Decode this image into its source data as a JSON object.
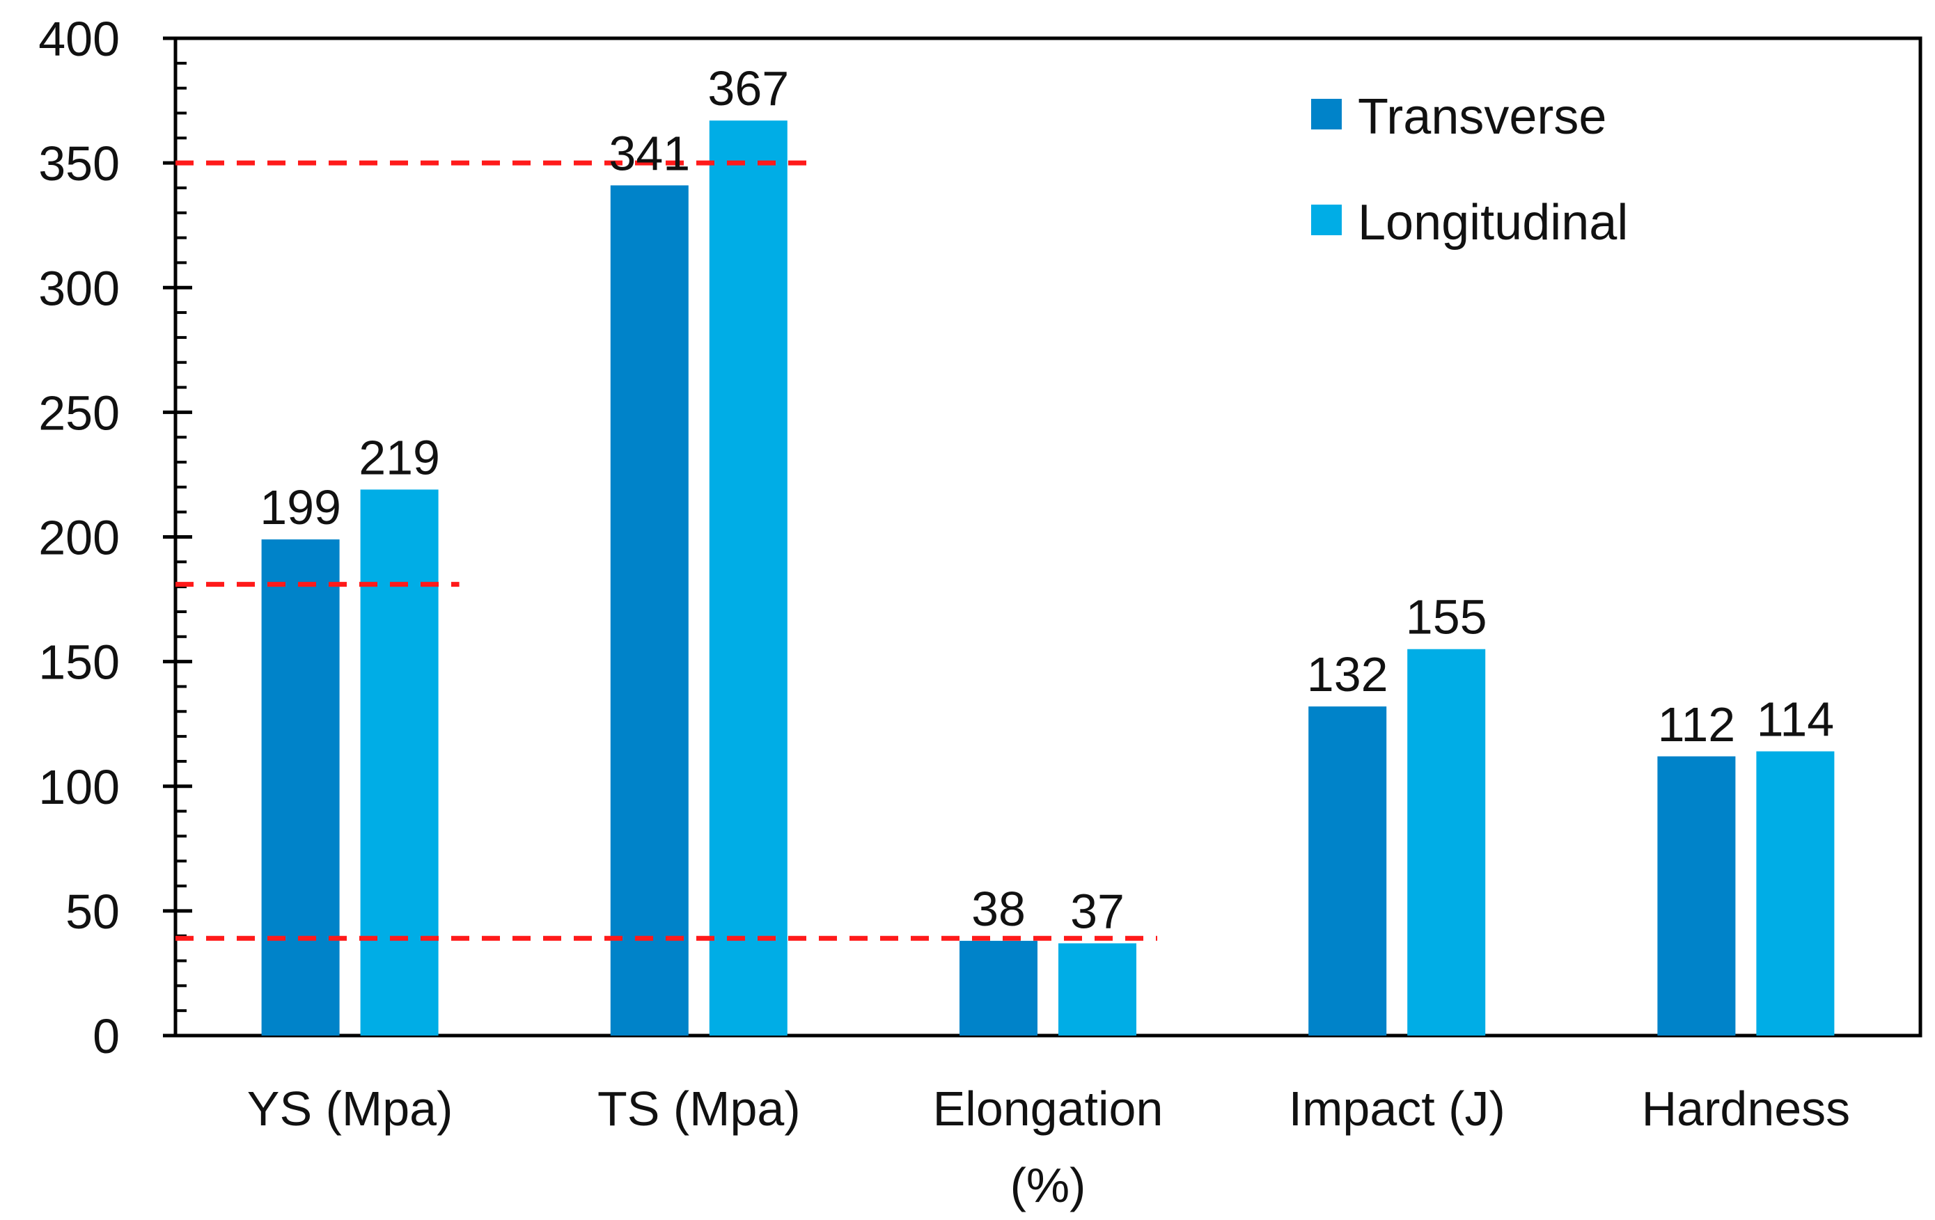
{
  "chart_data": {
    "type": "bar",
    "title": "",
    "xlabel": "",
    "ylabel": "",
    "ylim": [
      0,
      400
    ],
    "yticks": [
      0,
      50,
      100,
      150,
      200,
      250,
      300,
      350,
      400
    ],
    "minor_tick_step": 10,
    "grid": false,
    "legend_position": "top-right",
    "categories": [
      [
        "YS (Mpa)"
      ],
      [
        "TS (Mpa)"
      ],
      [
        "Elongation",
        "(%)"
      ],
      [
        "Impact (J)"
      ],
      [
        "Hardness"
      ]
    ],
    "series": [
      {
        "name": "Transverse",
        "color": "#0083C9",
        "values": [
          199,
          341,
          38,
          132,
          112
        ]
      },
      {
        "name": "Longitudinal",
        "color": "#00ADE6",
        "values": [
          219,
          367,
          37,
          155,
          114
        ]
      }
    ],
    "reference_lines": [
      {
        "value": 350,
        "from_category": 0,
        "to_category": 1,
        "color": "#FF1A1A",
        "style": "dashed"
      },
      {
        "value": 181,
        "from_category": 0,
        "to_category": 0,
        "color": "#FF1A1A",
        "style": "dashed"
      },
      {
        "value": 39,
        "from_category": 0,
        "to_category": 2,
        "color": "#FF1A1A",
        "style": "dashed"
      }
    ]
  }
}
